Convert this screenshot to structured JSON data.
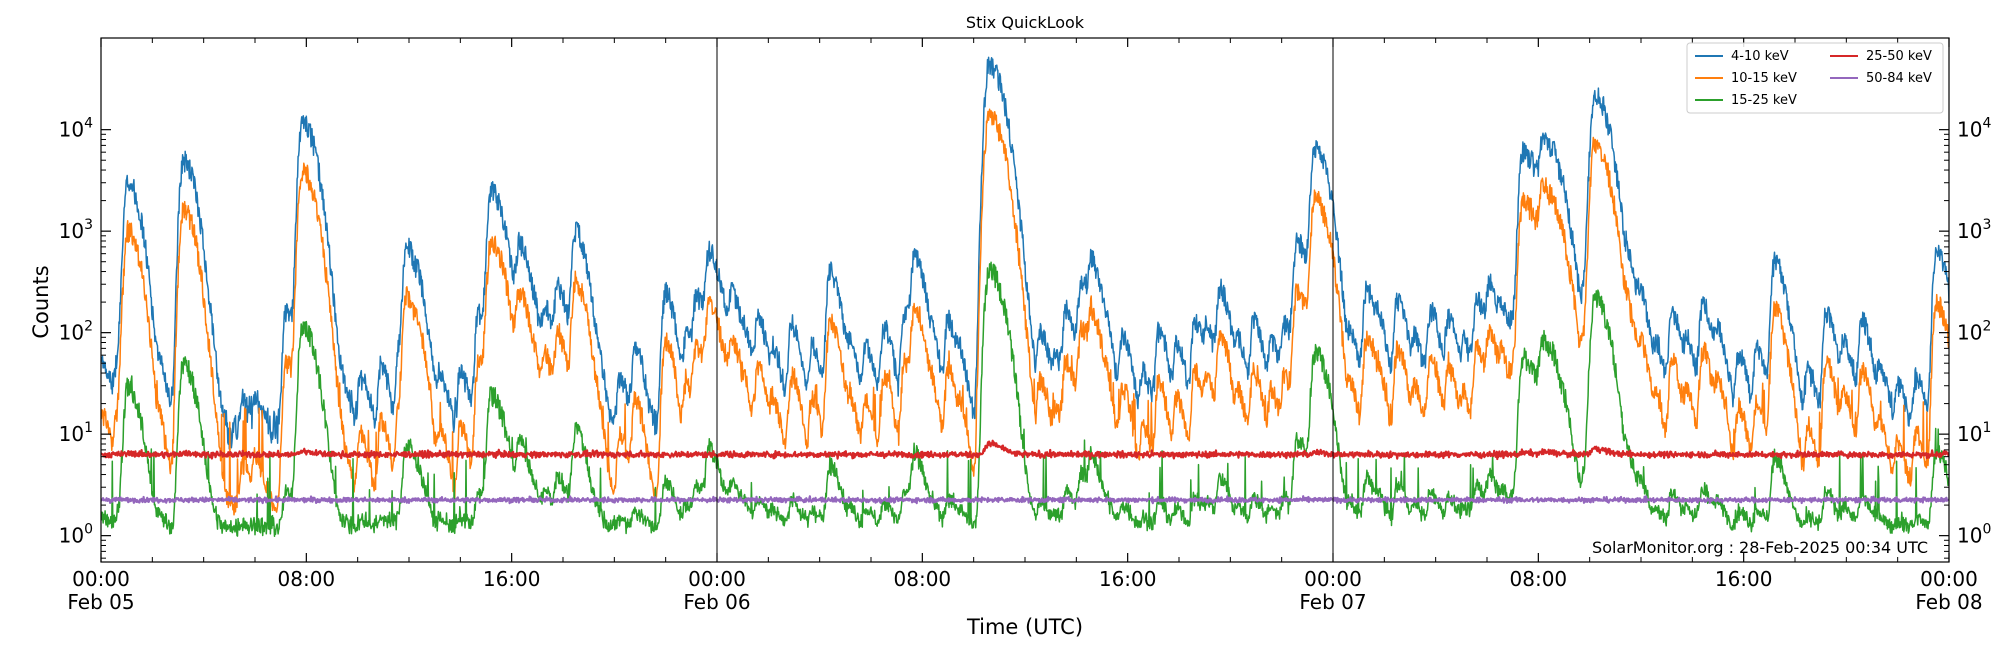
{
  "chart_data": {
    "type": "line",
    "title": "Stix QuickLook",
    "xlabel": "Time (UTC)",
    "ylabel": "Counts",
    "yscale": "log",
    "ylim": [
      0.55,
      80000
    ],
    "xlim_hours": [
      0,
      72
    ],
    "x_ticks": [
      {
        "hour": 0,
        "line1": "00:00",
        "line2": "Feb 05"
      },
      {
        "hour": 8,
        "line1": "08:00",
        "line2": ""
      },
      {
        "hour": 16,
        "line1": "16:00",
        "line2": ""
      },
      {
        "hour": 24,
        "line1": "00:00",
        "line2": "Feb 06"
      },
      {
        "hour": 32,
        "line1": "08:00",
        "line2": ""
      },
      {
        "hour": 40,
        "line1": "16:00",
        "line2": ""
      },
      {
        "hour": 48,
        "line1": "00:00",
        "line2": "Feb 07"
      },
      {
        "hour": 56,
        "line1": "08:00",
        "line2": ""
      },
      {
        "hour": 64,
        "line1": "16:00",
        "line2": ""
      },
      {
        "hour": 72,
        "line1": "00:00",
        "line2": "Feb 08"
      }
    ],
    "y_ticks": [
      {
        "value": 1,
        "exp": "0"
      },
      {
        "value": 10,
        "exp": "1"
      },
      {
        "value": 100,
        "exp": "2"
      },
      {
        "value": 1000,
        "exp": "3"
      },
      {
        "value": 10000,
        "exp": "4"
      }
    ],
    "y_tick_base": "10",
    "day_boundaries_hours": [
      24,
      48
    ],
    "annotation": "SolarMonitor.org : 28-Feb-2025 00:34 UTC",
    "legend_position": "top-right",
    "peaks": [
      {
        "t": 0.05,
        "a": 40
      },
      {
        "t": 0.6,
        "a": 30
      },
      {
        "t": 0.85,
        "a": 150
      },
      {
        "t": 1.05,
        "a": 3000
      },
      {
        "t": 1.6,
        "a": 30
      },
      {
        "t": 2.3,
        "a": 25
      },
      {
        "t": 3.2,
        "a": 5000
      },
      {
        "t": 3.45,
        "a": 80
      },
      {
        "t": 4.3,
        "a": 15
      },
      {
        "t": 5.5,
        "a": 10
      },
      {
        "t": 6.0,
        "a": 12
      },
      {
        "t": 7.2,
        "a": 150
      },
      {
        "t": 7.85,
        "a": 12000
      },
      {
        "t": 8.6,
        "a": 60
      },
      {
        "t": 9.4,
        "a": 15
      },
      {
        "t": 10.1,
        "a": 25
      },
      {
        "t": 10.9,
        "a": 35
      },
      {
        "t": 11.6,
        "a": 50
      },
      {
        "t": 11.9,
        "a": 700
      },
      {
        "t": 12.4,
        "a": 120
      },
      {
        "t": 13.2,
        "a": 25
      },
      {
        "t": 14.0,
        "a": 30
      },
      {
        "t": 14.7,
        "a": 150
      },
      {
        "t": 15.2,
        "a": 2500
      },
      {
        "t": 15.7,
        "a": 200
      },
      {
        "t": 16.3,
        "a": 700
      },
      {
        "t": 16.9,
        "a": 60
      },
      {
        "t": 17.3,
        "a": 150
      },
      {
        "t": 17.8,
        "a": 250
      },
      {
        "t": 18.4,
        "a": 100
      },
      {
        "t": 18.5,
        "a": 900
      },
      {
        "t": 19.3,
        "a": 30
      },
      {
        "t": 20.2,
        "a": 25
      },
      {
        "t": 20.8,
        "a": 60
      },
      {
        "t": 21.9,
        "a": 50
      },
      {
        "t": 22.0,
        "a": 200
      },
      {
        "t": 22.8,
        "a": 80
      },
      {
        "t": 23.2,
        "a": 200
      },
      {
        "t": 23.7,
        "a": 600
      },
      {
        "t": 24.3,
        "a": 60
      },
      {
        "t": 24.6,
        "a": 200
      },
      {
        "t": 25.1,
        "a": 50
      },
      {
        "t": 25.6,
        "a": 120
      },
      {
        "t": 26.2,
        "a": 50
      },
      {
        "t": 26.9,
        "a": 110
      },
      {
        "t": 27.7,
        "a": 60
      },
      {
        "t": 28.4,
        "a": 400
      },
      {
        "t": 29.2,
        "a": 50
      },
      {
        "t": 29.8,
        "a": 60
      },
      {
        "t": 30.5,
        "a": 100
      },
      {
        "t": 31.3,
        "a": 150
      },
      {
        "t": 31.7,
        "a": 500
      },
      {
        "t": 32.4,
        "a": 50
      },
      {
        "t": 33.0,
        "a": 120
      },
      {
        "t": 33.5,
        "a": 30
      },
      {
        "t": 34.6,
        "a": 44000
      },
      {
        "t": 35.2,
        "a": 200
      },
      {
        "t": 36.0,
        "a": 40
      },
      {
        "t": 36.6,
        "a": 90
      },
      {
        "t": 37.2,
        "a": 40
      },
      {
        "t": 37.6,
        "a": 150
      },
      {
        "t": 38.2,
        "a": 300
      },
      {
        "t": 38.6,
        "a": 400
      },
      {
        "t": 39.2,
        "a": 50
      },
      {
        "t": 39.8,
        "a": 80
      },
      {
        "t": 40.6,
        "a": 30
      },
      {
        "t": 41.2,
        "a": 90
      },
      {
        "t": 41.9,
        "a": 60
      },
      {
        "t": 42.6,
        "a": 120
      },
      {
        "t": 43.1,
        "a": 80
      },
      {
        "t": 43.6,
        "a": 250
      },
      {
        "t": 44.3,
        "a": 60
      },
      {
        "t": 44.9,
        "a": 120
      },
      {
        "t": 45.6,
        "a": 70
      },
      {
        "t": 46.1,
        "a": 100
      },
      {
        "t": 46.6,
        "a": 800
      },
      {
        "t": 47.3,
        "a": 6500
      },
      {
        "t": 47.8,
        "a": 250
      },
      {
        "t": 48.7,
        "a": 70
      },
      {
        "t": 49.3,
        "a": 250
      },
      {
        "t": 49.8,
        "a": 80
      },
      {
        "t": 50.5,
        "a": 200
      },
      {
        "t": 51.2,
        "a": 70
      },
      {
        "t": 51.8,
        "a": 150
      },
      {
        "t": 52.5,
        "a": 120
      },
      {
        "t": 53.1,
        "a": 60
      },
      {
        "t": 53.6,
        "a": 200
      },
      {
        "t": 54.1,
        "a": 250
      },
      {
        "t": 54.6,
        "a": 120
      },
      {
        "t": 55.0,
        "a": 80
      },
      {
        "t": 55.4,
        "a": 6000
      },
      {
        "t": 55.8,
        "a": 900
      },
      {
        "t": 56.2,
        "a": 7500
      },
      {
        "t": 56.6,
        "a": 1500
      },
      {
        "t": 57.0,
        "a": 700
      },
      {
        "t": 57.8,
        "a": 200
      },
      {
        "t": 58.2,
        "a": 23000
      },
      {
        "t": 58.9,
        "a": 150
      },
      {
        "t": 59.5,
        "a": 350
      },
      {
        "t": 60.0,
        "a": 150
      },
      {
        "t": 60.6,
        "a": 50
      },
      {
        "t": 61.2,
        "a": 150
      },
      {
        "t": 61.8,
        "a": 60
      },
      {
        "t": 62.4,
        "a": 180
      },
      {
        "t": 63.0,
        "a": 80
      },
      {
        "t": 63.8,
        "a": 50
      },
      {
        "t": 64.5,
        "a": 60
      },
      {
        "t": 65.2,
        "a": 500
      },
      {
        "t": 65.8,
        "a": 30
      },
      {
        "t": 66.5,
        "a": 30
      },
      {
        "t": 67.2,
        "a": 150
      },
      {
        "t": 67.9,
        "a": 70
      },
      {
        "t": 68.6,
        "a": 120
      },
      {
        "t": 69.3,
        "a": 30
      },
      {
        "t": 70.0,
        "a": 20
      },
      {
        "t": 70.7,
        "a": 25
      },
      {
        "t": 71.5,
        "a": 600
      },
      {
        "t": 71.9,
        "a": 30
      }
    ],
    "series": [
      {
        "name": "4-10 keV",
        "color": "#1f77b4",
        "baseline": 11,
        "noise": 0.11,
        "response": 1.0
      },
      {
        "name": "10-15 keV",
        "color": "#ff7f0e",
        "baseline": 2.0,
        "noise": 0.07,
        "response": 0.33
      },
      {
        "name": "15-25 keV",
        "color": "#2ca02c",
        "baseline": 1.2,
        "noise": 0.05,
        "response": 0.0095
      },
      {
        "name": "25-50 keV",
        "color": "#d62728",
        "baseline": 6.3,
        "noise": 0.015,
        "response": 4e-05
      },
      {
        "name": "50-84 keV",
        "color": "#9467bd",
        "baseline": 2.25,
        "noise": 0.012,
        "response": 0.0
      }
    ]
  }
}
